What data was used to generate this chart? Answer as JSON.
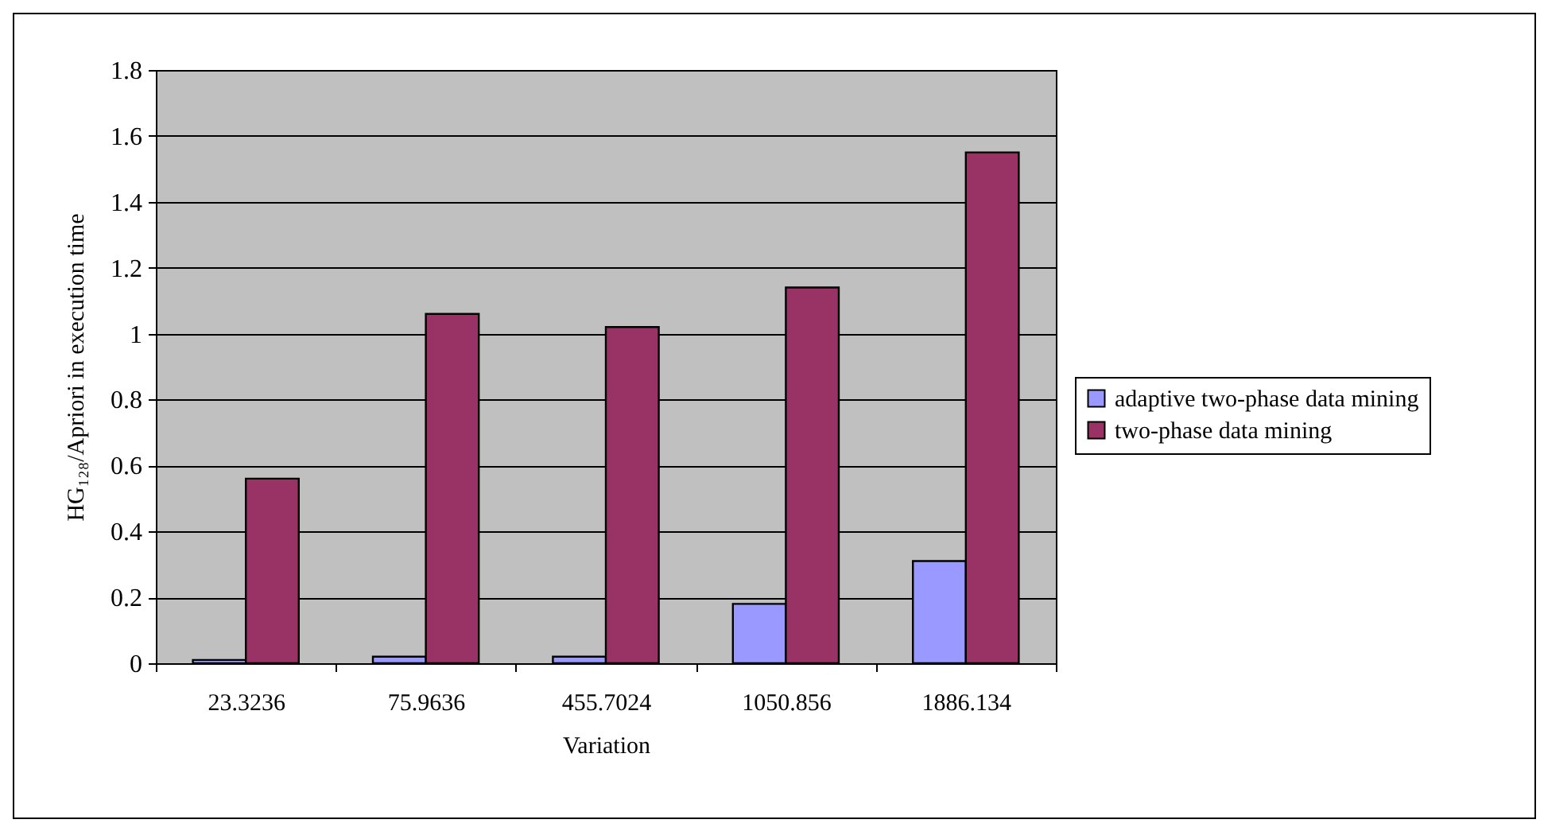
{
  "chart_data": {
    "type": "bar",
    "xlabel": "Variation",
    "ylabel": "HG₁₂₈/Apriori  in execution time",
    "categories": [
      "23.3236",
      "75.9636",
      "455.7024",
      "1050.856",
      "1886.134"
    ],
    "series": [
      {
        "name": "adaptive two-phase data mining",
        "color": "#9999ff",
        "values": [
          0.01,
          0.02,
          0.02,
          0.18,
          0.31
        ]
      },
      {
        "name": "two-phase data mining",
        "color": "#993366",
        "values": [
          0.56,
          1.06,
          1.02,
          1.14,
          1.55
        ]
      }
    ],
    "ylim": [
      0,
      1.8
    ],
    "yticks": [
      0,
      0.2,
      0.4,
      0.6,
      0.8,
      1,
      1.2,
      1.4,
      1.6,
      1.8
    ],
    "grid": "y",
    "legend": "right"
  }
}
